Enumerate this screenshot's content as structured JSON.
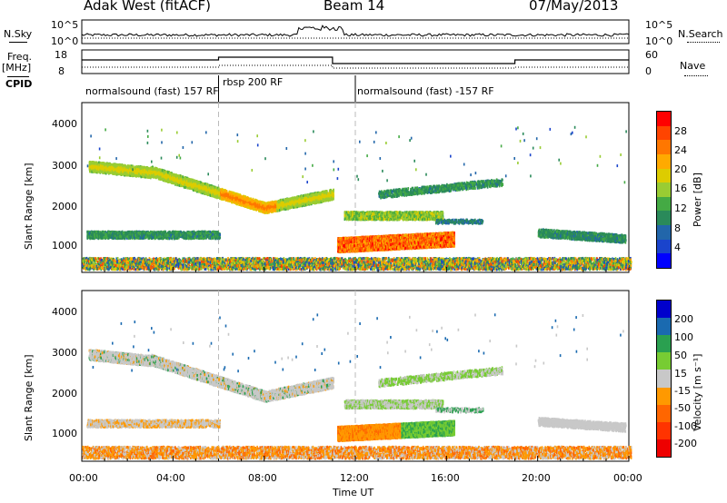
{
  "header": {
    "radar": "Adak West (fitACF)",
    "beam": "Beam 14",
    "date": "07/May/2013"
  },
  "panels": {
    "nsky_label": "N.Sky",
    "nsky_ticks": [
      "10^5",
      "10^0"
    ],
    "nsearch_label": "N.Search",
    "nsearch_ticks": [
      "10^5",
      "10^0"
    ],
    "freq_label": "Freq.",
    "freq_unit": "[MHz]",
    "freq_ticks": [
      "18",
      "8"
    ],
    "nave_label": "Nave",
    "nave_ticks": [
      "60",
      "0"
    ],
    "cpid_label": "CPID",
    "cpid_segments": [
      "normalsound (fast) 157 RF",
      "rbsp 200 RF",
      "normalsound (fast) -157 RF"
    ]
  },
  "chart_data": [
    {
      "type": "heatmap",
      "title": "",
      "ylabel": "Slant Range [km]",
      "xlabel": "",
      "x_ticks": [
        "00:00",
        "04:00",
        "08:00",
        "12:00",
        "16:00",
        "20:00",
        "00:00"
      ],
      "y_ticks": [
        "1000",
        "2000",
        "3000",
        "4000"
      ],
      "ylim": [
        180,
        4600
      ],
      "xlim_hours": [
        0,
        24
      ],
      "colorbar": {
        "label": "Power [dB]",
        "ticks": [
          "28",
          "24",
          "20",
          "16",
          "12",
          "8",
          "4"
        ],
        "colors": [
          "#ff0000",
          "#ff4400",
          "#ff7700",
          "#ffaa00",
          "#ddcc00",
          "#99cc33",
          "#44aa44",
          "#2a8a5a",
          "#2266aa",
          "#1a44cc",
          "#0000ff"
        ]
      }
    },
    {
      "type": "heatmap",
      "title": "",
      "ylabel": "Slant Range [km]",
      "xlabel": "Time UT",
      "x_ticks": [
        "00:00",
        "04:00",
        "08:00",
        "12:00",
        "16:00",
        "20:00",
        "00:00"
      ],
      "y_ticks": [
        "1000",
        "2000",
        "3000",
        "4000"
      ],
      "ylim": [
        180,
        4600
      ],
      "xlim_hours": [
        0,
        24
      ],
      "colorbar": {
        "label": "Velocity [m s⁻¹]",
        "ticks": [
          "200",
          "100",
          "50",
          "15",
          "-15",
          "-50",
          "-100",
          "-200"
        ],
        "colors": [
          "#0000cc",
          "#1a6ab0",
          "#2aa050",
          "#77cc33",
          "#c8c8c8",
          "#ff9900",
          "#ff6600",
          "#ff3300",
          "#ee0000"
        ]
      }
    }
  ]
}
